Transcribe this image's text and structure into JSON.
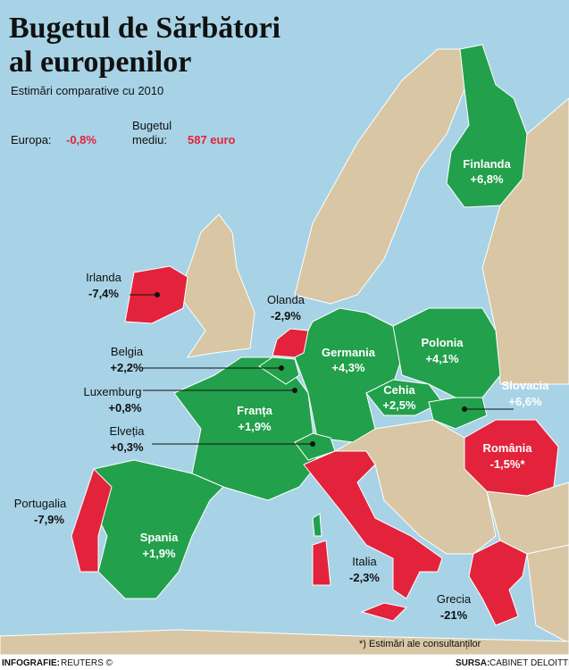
{
  "header": {
    "title_line1": "Bugetul de Sărbători",
    "title_line2": "al europenilor",
    "subtitle": "Estimări comparative cu 2010"
  },
  "summary": {
    "europe_label": "Europa:",
    "europe_value": "-0,8%",
    "budget_label_line1": "Bugetul",
    "budget_label_line2": "mediu:",
    "budget_value": "587 euro"
  },
  "countries": [
    {
      "name": "Finlanda",
      "value": "+6,8%"
    },
    {
      "name": "Irlanda",
      "value": "-7,4%"
    },
    {
      "name": "Olanda",
      "value": "-2,9%"
    },
    {
      "name": "Belgia",
      "value": "+2,2%"
    },
    {
      "name": "Luxemburg",
      "value": "+0,8%"
    },
    {
      "name": "Germania",
      "value": "+4,3%"
    },
    {
      "name": "Polonia",
      "value": "+4,1%"
    },
    {
      "name": "Cehia",
      "value": "+2,5%"
    },
    {
      "name": "Slovacia",
      "value": "+6,6%"
    },
    {
      "name": "Franța",
      "value": "+1,9%"
    },
    {
      "name": "Elveția",
      "value": "+0,3%"
    },
    {
      "name": "România",
      "value": "-1,5%*"
    },
    {
      "name": "Portugalia",
      "value": "-7,9%"
    },
    {
      "name": "Spania",
      "value": "+1,9%"
    },
    {
      "name": "Italia",
      "value": "-2,3%"
    },
    {
      "name": "Grecia",
      "value": "-21%"
    }
  ],
  "footer": {
    "credit_label": "INFOGRAFIE:",
    "credit": "REUTERS ©",
    "note": "*) Estimări ale consultanților",
    "source_label": "SURSA:",
    "source": "CABINET DELOITTE"
  }
}
